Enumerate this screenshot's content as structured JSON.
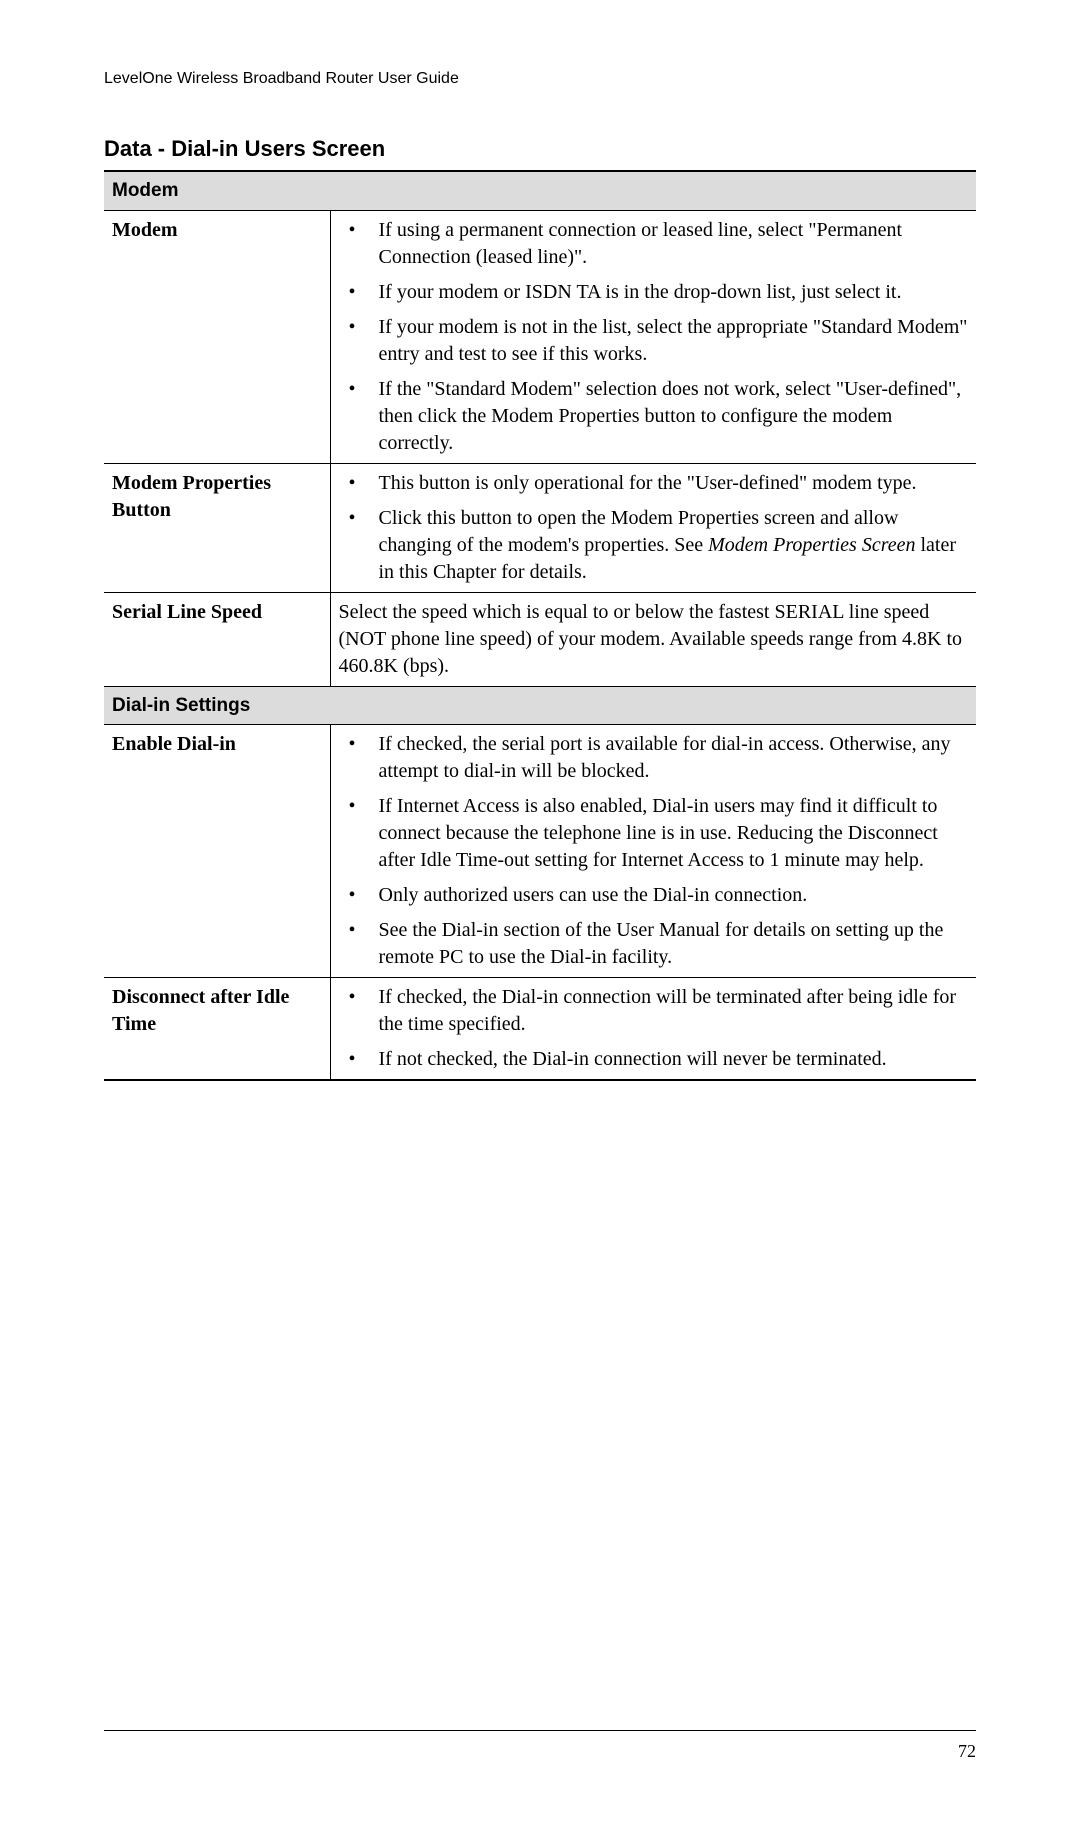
{
  "header": {
    "text": "LevelOne Wireless Broadband Router User Guide"
  },
  "section_title": "Data - Dial-in Users Screen",
  "table": {
    "sections": [
      {
        "header": "Modem",
        "rows": [
          {
            "label": "Modem",
            "bullets": [
              "If using a permanent connection or leased line, select \"Permanent Connection (leased line)\".",
              "If your modem or ISDN TA is in the drop-down list, just select it.",
              "If your modem is not in the list, select the appropriate \"Standard Modem\" entry and test to see if this works.",
              "If the \"Standard Modem\" selection does not work, select \"User-defined\", then click the Modem Properties button to configure the modem correctly."
            ]
          },
          {
            "label": "Modem Properties Button",
            "bullets": [
              "This button is only operational for the \"User-defined\" modem type.",
              "Click this button to open the Modem Properties screen and allow changing of the modem's properties. See <span class=\"italic\">Modem Properties Screen</span> later in this Chapter for details."
            ]
          },
          {
            "label": "Serial Line Speed",
            "text": "Select the speed which is equal to or below the fastest SERIAL line speed (NOT phone line speed) of your modem. Available speeds range from 4.8K to 460.8K (bps)."
          }
        ]
      },
      {
        "header": "Dial-in Settings",
        "rows": [
          {
            "label": "Enable Dial-in",
            "bullets": [
              "If checked, the serial port is available for dial-in access. Otherwise, any attempt to dial-in will be blocked.",
              "If Internet Access is also enabled, Dial-in users may find it difficult to connect because the telephone line is in use. Reducing the Disconnect after Idle Time-out setting for Internet Access to 1 minute may help.",
              "Only authorized users can use the Dial-in connection.",
              "See the Dial-in section of the User Manual for details on setting up the remote PC to use the Dial-in facility."
            ]
          },
          {
            "label": "Disconnect after Idle Time",
            "bullets": [
              "If checked, the Dial-in connection will be terminated after being idle for the time specified.",
              "If not checked, the Dial-in connection will never be terminated."
            ]
          }
        ]
      }
    ]
  },
  "footer": {
    "page_number": "72"
  },
  "colors": {
    "background": "#ffffff",
    "text": "#000000",
    "section_header_bg": "#dcdcdc",
    "border": "#000000"
  }
}
